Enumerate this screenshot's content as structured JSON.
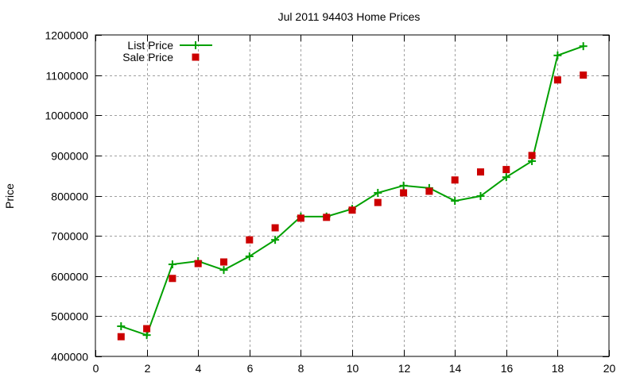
{
  "chart_data": {
    "type": "line",
    "title": "Jul 2011 94403 Home Prices",
    "xlabel": "",
    "ylabel": "Price",
    "xlim": [
      0,
      20
    ],
    "ylim": [
      400000,
      1200000
    ],
    "x_ticks": [
      0,
      2,
      4,
      6,
      8,
      10,
      12,
      14,
      16,
      18,
      20
    ],
    "y_ticks": [
      400000,
      500000,
      600000,
      700000,
      800000,
      900000,
      1000000,
      1100000,
      1200000
    ],
    "grid": true,
    "legend_position": "top-left",
    "x": [
      1,
      2,
      3,
      4,
      5,
      6,
      7,
      8,
      9,
      10,
      11,
      12,
      13,
      14,
      15,
      16,
      17,
      18,
      19
    ],
    "series": [
      {
        "name": "List Price",
        "style": "linespoints",
        "marker": "plus",
        "color": "#00a000",
        "values": [
          475000,
          453000,
          629000,
          637000,
          615000,
          649000,
          690000,
          748000,
          748000,
          767000,
          807000,
          825000,
          819000,
          787000,
          799000,
          846000,
          886000,
          1149000,
          1172000
        ]
      },
      {
        "name": "Sale Price",
        "style": "points",
        "marker": "square",
        "color": "#cc0000",
        "values": [
          449000,
          469000,
          594000,
          631000,
          635000,
          690000,
          720000,
          744000,
          746000,
          764000,
          783000,
          807000,
          811000,
          839000,
          859000,
          865000,
          900000,
          1088000,
          1100000
        ]
      }
    ]
  }
}
